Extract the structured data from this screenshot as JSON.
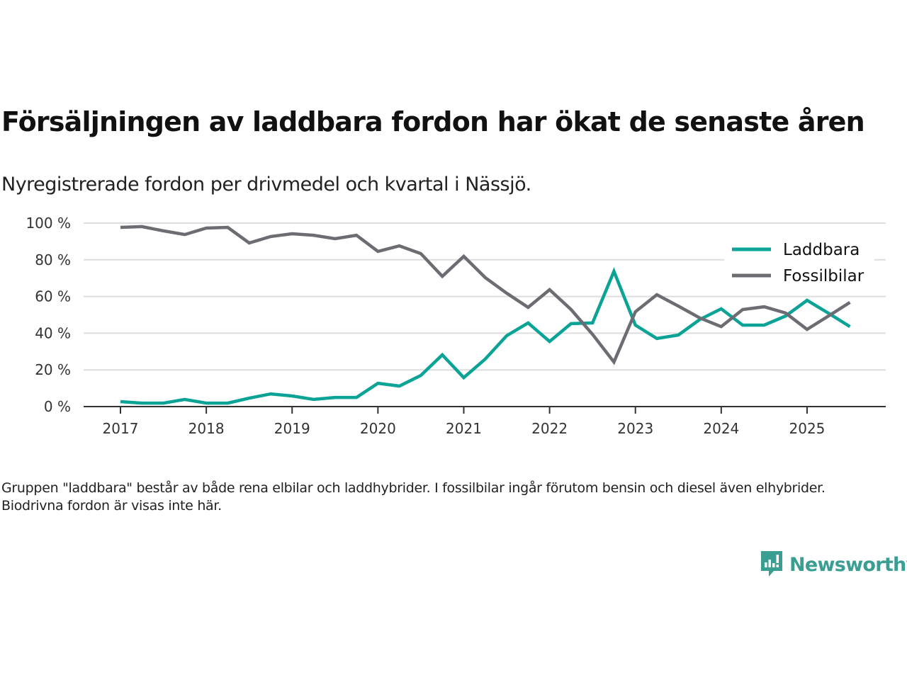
{
  "header": {
    "title": "Försäljningen av laddbara fordon har ökat de senaste åren",
    "subtitle": "Nyregistrerade fordon per drivmedel och kvartal i Nässjö."
  },
  "footer": {
    "note": "Gruppen \"laddbara\" består av både rena elbilar och laddhybrider. I fossilbilar ingår förutom bensin och diesel även elhybrider. Biodrivna fordon är visas inte här.",
    "brand": "Newsworthy",
    "brand_icon": "newsworthy-logo-icon",
    "brand_color": "#3a9e92"
  },
  "chart_data": {
    "type": "line",
    "title": "Försäljningen av laddbara fordon har ökat de senaste åren",
    "subtitle": "Nyregistrerade fordon per drivmedel och kvartal i Nässjö.",
    "xlabel": "",
    "ylabel": "",
    "x": [
      "2017Q1",
      "2017Q2",
      "2017Q3",
      "2017Q4",
      "2018Q1",
      "2018Q2",
      "2018Q3",
      "2018Q4",
      "2019Q1",
      "2019Q2",
      "2019Q3",
      "2019Q4",
      "2020Q1",
      "2020Q2",
      "2020Q3",
      "2020Q4",
      "2021Q1",
      "2021Q2",
      "2021Q3",
      "2021Q4",
      "2022Q1",
      "2022Q2",
      "2022Q3",
      "2022Q4",
      "2023Q1",
      "2023Q2",
      "2023Q3",
      "2023Q4",
      "2024Q1",
      "2024Q2",
      "2024Q3",
      "2024Q4",
      "2025Q1",
      "2025Q2",
      "2025Q3"
    ],
    "x_ticks": [
      "2017",
      "2018",
      "2019",
      "2020",
      "2021",
      "2022",
      "2023",
      "2024",
      "2025"
    ],
    "y_ticks": [
      "0 %",
      "20 %",
      "40 %",
      "60 %",
      "80 %",
      "100 %"
    ],
    "ylim": [
      0,
      100
    ],
    "grid": "horizontal",
    "legend_position": "top-right",
    "series": [
      {
        "name": "Laddbara",
        "color": "#0aa396",
        "values": [
          2.7,
          1.9,
          1.9,
          3.9,
          1.9,
          1.9,
          4.6,
          6.9,
          5.8,
          3.9,
          5.0,
          5.0,
          12.7,
          11.2,
          17.0,
          28.2,
          15.8,
          25.9,
          38.6,
          45.6,
          35.5,
          45.2,
          45.6,
          73.7,
          44.4,
          37.1,
          39.0,
          47.5,
          53.3,
          44.4,
          44.4,
          49.4,
          57.9,
          50.9,
          43.6
        ]
      },
      {
        "name": "Fossilbilar",
        "color": "#6d6c73",
        "values": [
          97.7,
          98.1,
          95.8,
          93.8,
          97.3,
          97.7,
          89.2,
          92.7,
          94.2,
          93.4,
          91.5,
          93.4,
          84.6,
          87.6,
          83.4,
          71.0,
          81.9,
          70.3,
          61.8,
          54.1,
          63.7,
          52.9,
          39.4,
          24.3,
          51.7,
          61.0,
          54.8,
          48.3,
          43.6,
          52.9,
          54.4,
          51.0,
          42.1,
          49.4,
          56.8
        ]
      }
    ]
  }
}
